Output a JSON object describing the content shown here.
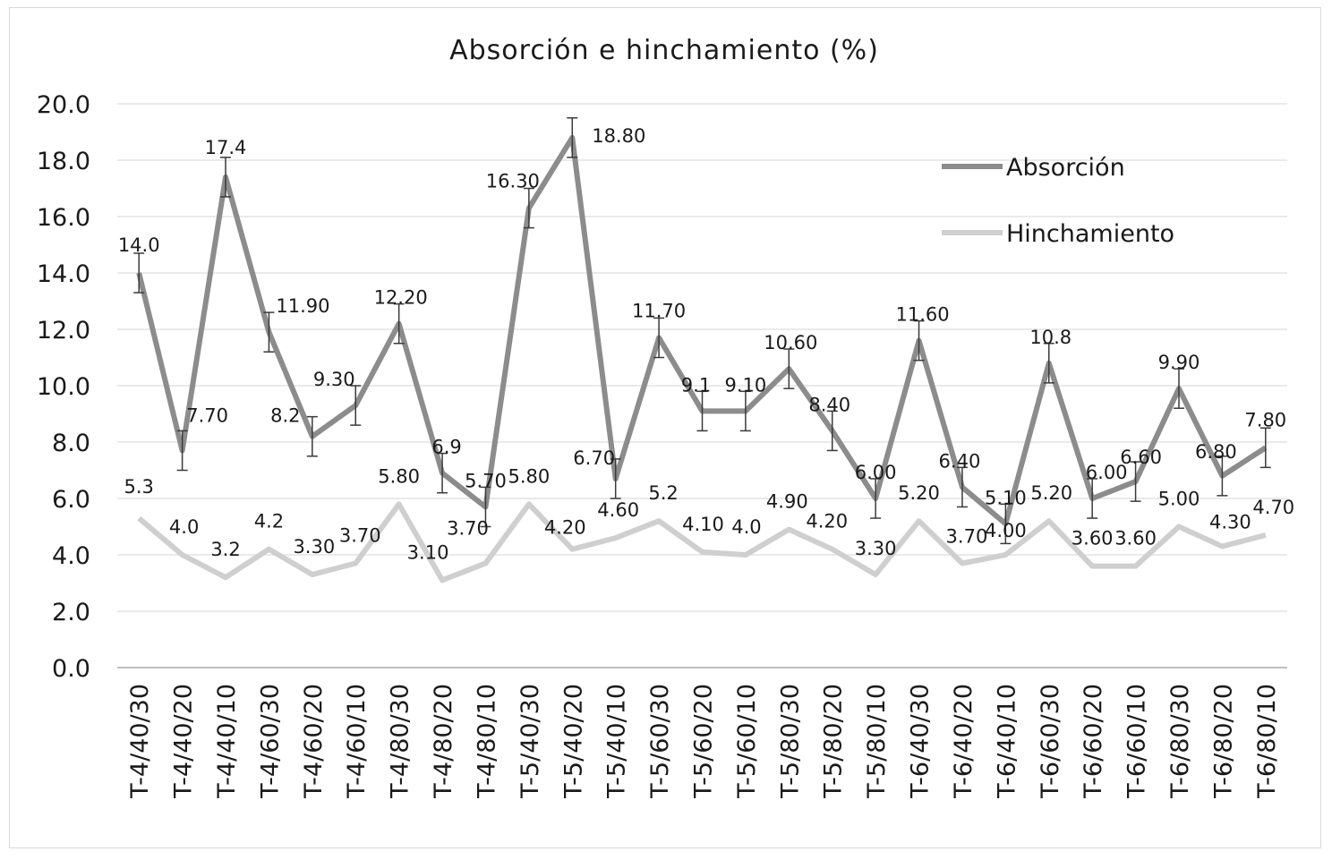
{
  "chart_data": {
    "type": "line",
    "title": "Absorción e hinchamiento (%)",
    "xlabel": "",
    "ylabel": "",
    "ylim": [
      0,
      20
    ],
    "y_ticks": [
      "0.0",
      "2.0",
      "4.0",
      "6.0",
      "8.0",
      "10.0",
      "12.0",
      "14.0",
      "16.0",
      "18.0",
      "20.0"
    ],
    "grid": true,
    "legend_position": "top-right",
    "categories": [
      "T-4/40/30",
      "T-4/40/20",
      "T-4/40/10",
      "T-4/60/30",
      "T-4/60/20",
      "T-4/60/10",
      "T-4/80/30",
      "T-4/80/20",
      "T-4/80/10",
      "T-5/40/30",
      "T-5/40/20",
      "T-5/40/10",
      "T-5/60/30",
      "T-5/60/20",
      "T-5/60/10",
      "T-5/80/30",
      "T-5/80/20",
      "T-5/80/10",
      "T-6/40/30",
      "T-6/40/20",
      "T-6/40/10",
      "T-6/60/30",
      "T-6/60/20",
      "T-6/60/10",
      "T-6/80/30",
      "T-6/80/20",
      "T-6/80/10"
    ],
    "series": [
      {
        "name": "Absorción",
        "color": "#8c8c8c",
        "values": [
          14.0,
          7.7,
          17.4,
          11.9,
          8.2,
          9.3,
          12.2,
          6.9,
          5.7,
          16.3,
          18.8,
          6.7,
          11.7,
          9.1,
          9.1,
          10.6,
          8.4,
          6.0,
          11.6,
          6.4,
          5.1,
          10.8,
          6.0,
          6.6,
          9.9,
          6.8,
          7.8
        ],
        "labels": [
          "14.0",
          "7.70",
          "17.4",
          "11.90",
          "8.2",
          "9.30",
          "12.20",
          "6.9",
          "5.70",
          "16.30",
          "18.80",
          "6.70",
          "11.70",
          "9.1",
          "9.10",
          "10.60",
          "8.40",
          "6.00",
          "11.60",
          "6.40",
          "5.10",
          "10.8",
          "6.00",
          "6.60",
          "9.90",
          "6.80",
          "7.80"
        ],
        "error": 0.7
      },
      {
        "name": "Hinchamiento",
        "color": "#cfcfcf",
        "values": [
          5.3,
          4.0,
          3.2,
          4.2,
          3.3,
          3.7,
          5.8,
          3.1,
          3.7,
          5.8,
          4.2,
          4.6,
          5.2,
          4.1,
          4.0,
          4.9,
          4.2,
          3.3,
          5.2,
          3.7,
          4.0,
          5.2,
          3.6,
          3.6,
          5.0,
          4.3,
          4.7
        ],
        "labels": [
          "5.3",
          "4.0",
          "3.2",
          "4.2",
          "3.30",
          "3.70",
          "5.80",
          "3.10",
          "3.70",
          "5.80",
          "4.20",
          "4.60",
          "5.2",
          "4.10",
          "4.0",
          "4.90",
          "4.20",
          "3.30",
          "5.20",
          "3.70",
          "4.00",
          "5.20",
          "3.60",
          "3.60",
          "5.00",
          "4.30",
          "4.70"
        ]
      }
    ]
  }
}
